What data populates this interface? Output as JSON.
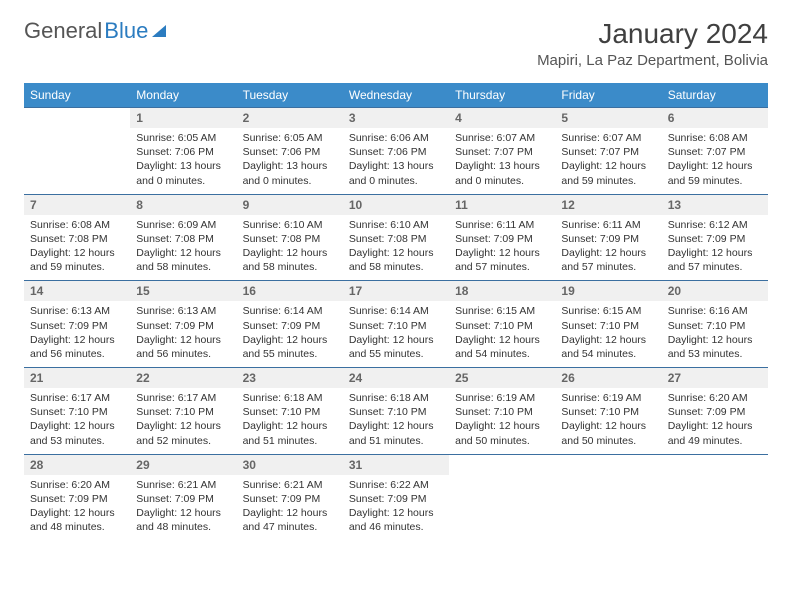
{
  "logo": {
    "first": "General",
    "second": "Blue"
  },
  "title": "January 2024",
  "location": "Mapiri, La Paz Department, Bolivia",
  "colors": {
    "header_bg": "#3b8bc9",
    "header_text": "#ffffff",
    "daynum_bg": "#f0f0f0",
    "border": "#3b6fa0",
    "logo_blue": "#2b7cc0"
  },
  "weekdays": [
    "Sunday",
    "Monday",
    "Tuesday",
    "Wednesday",
    "Thursday",
    "Friday",
    "Saturday"
  ],
  "weeks": [
    {
      "nums": [
        "",
        "1",
        "2",
        "3",
        "4",
        "5",
        "6"
      ],
      "cells": [
        "",
        "Sunrise: 6:05 AM\nSunset: 7:06 PM\nDaylight: 13 hours and 0 minutes.",
        "Sunrise: 6:05 AM\nSunset: 7:06 PM\nDaylight: 13 hours and 0 minutes.",
        "Sunrise: 6:06 AM\nSunset: 7:06 PM\nDaylight: 13 hours and 0 minutes.",
        "Sunrise: 6:07 AM\nSunset: 7:07 PM\nDaylight: 13 hours and 0 minutes.",
        "Sunrise: 6:07 AM\nSunset: 7:07 PM\nDaylight: 12 hours and 59 minutes.",
        "Sunrise: 6:08 AM\nSunset: 7:07 PM\nDaylight: 12 hours and 59 minutes."
      ]
    },
    {
      "nums": [
        "7",
        "8",
        "9",
        "10",
        "11",
        "12",
        "13"
      ],
      "cells": [
        "Sunrise: 6:08 AM\nSunset: 7:08 PM\nDaylight: 12 hours and 59 minutes.",
        "Sunrise: 6:09 AM\nSunset: 7:08 PM\nDaylight: 12 hours and 58 minutes.",
        "Sunrise: 6:10 AM\nSunset: 7:08 PM\nDaylight: 12 hours and 58 minutes.",
        "Sunrise: 6:10 AM\nSunset: 7:08 PM\nDaylight: 12 hours and 58 minutes.",
        "Sunrise: 6:11 AM\nSunset: 7:09 PM\nDaylight: 12 hours and 57 minutes.",
        "Sunrise: 6:11 AM\nSunset: 7:09 PM\nDaylight: 12 hours and 57 minutes.",
        "Sunrise: 6:12 AM\nSunset: 7:09 PM\nDaylight: 12 hours and 57 minutes."
      ]
    },
    {
      "nums": [
        "14",
        "15",
        "16",
        "17",
        "18",
        "19",
        "20"
      ],
      "cells": [
        "Sunrise: 6:13 AM\nSunset: 7:09 PM\nDaylight: 12 hours and 56 minutes.",
        "Sunrise: 6:13 AM\nSunset: 7:09 PM\nDaylight: 12 hours and 56 minutes.",
        "Sunrise: 6:14 AM\nSunset: 7:09 PM\nDaylight: 12 hours and 55 minutes.",
        "Sunrise: 6:14 AM\nSunset: 7:10 PM\nDaylight: 12 hours and 55 minutes.",
        "Sunrise: 6:15 AM\nSunset: 7:10 PM\nDaylight: 12 hours and 54 minutes.",
        "Sunrise: 6:15 AM\nSunset: 7:10 PM\nDaylight: 12 hours and 54 minutes.",
        "Sunrise: 6:16 AM\nSunset: 7:10 PM\nDaylight: 12 hours and 53 minutes."
      ]
    },
    {
      "nums": [
        "21",
        "22",
        "23",
        "24",
        "25",
        "26",
        "27"
      ],
      "cells": [
        "Sunrise: 6:17 AM\nSunset: 7:10 PM\nDaylight: 12 hours and 53 minutes.",
        "Sunrise: 6:17 AM\nSunset: 7:10 PM\nDaylight: 12 hours and 52 minutes.",
        "Sunrise: 6:18 AM\nSunset: 7:10 PM\nDaylight: 12 hours and 51 minutes.",
        "Sunrise: 6:18 AM\nSunset: 7:10 PM\nDaylight: 12 hours and 51 minutes.",
        "Sunrise: 6:19 AM\nSunset: 7:10 PM\nDaylight: 12 hours and 50 minutes.",
        "Sunrise: 6:19 AM\nSunset: 7:10 PM\nDaylight: 12 hours and 50 minutes.",
        "Sunrise: 6:20 AM\nSunset: 7:09 PM\nDaylight: 12 hours and 49 minutes."
      ]
    },
    {
      "nums": [
        "28",
        "29",
        "30",
        "31",
        "",
        "",
        ""
      ],
      "cells": [
        "Sunrise: 6:20 AM\nSunset: 7:09 PM\nDaylight: 12 hours and 48 minutes.",
        "Sunrise: 6:21 AM\nSunset: 7:09 PM\nDaylight: 12 hours and 48 minutes.",
        "Sunrise: 6:21 AM\nSunset: 7:09 PM\nDaylight: 12 hours and 47 minutes.",
        "Sunrise: 6:22 AM\nSunset: 7:09 PM\nDaylight: 12 hours and 46 minutes.",
        "",
        "",
        ""
      ]
    }
  ]
}
